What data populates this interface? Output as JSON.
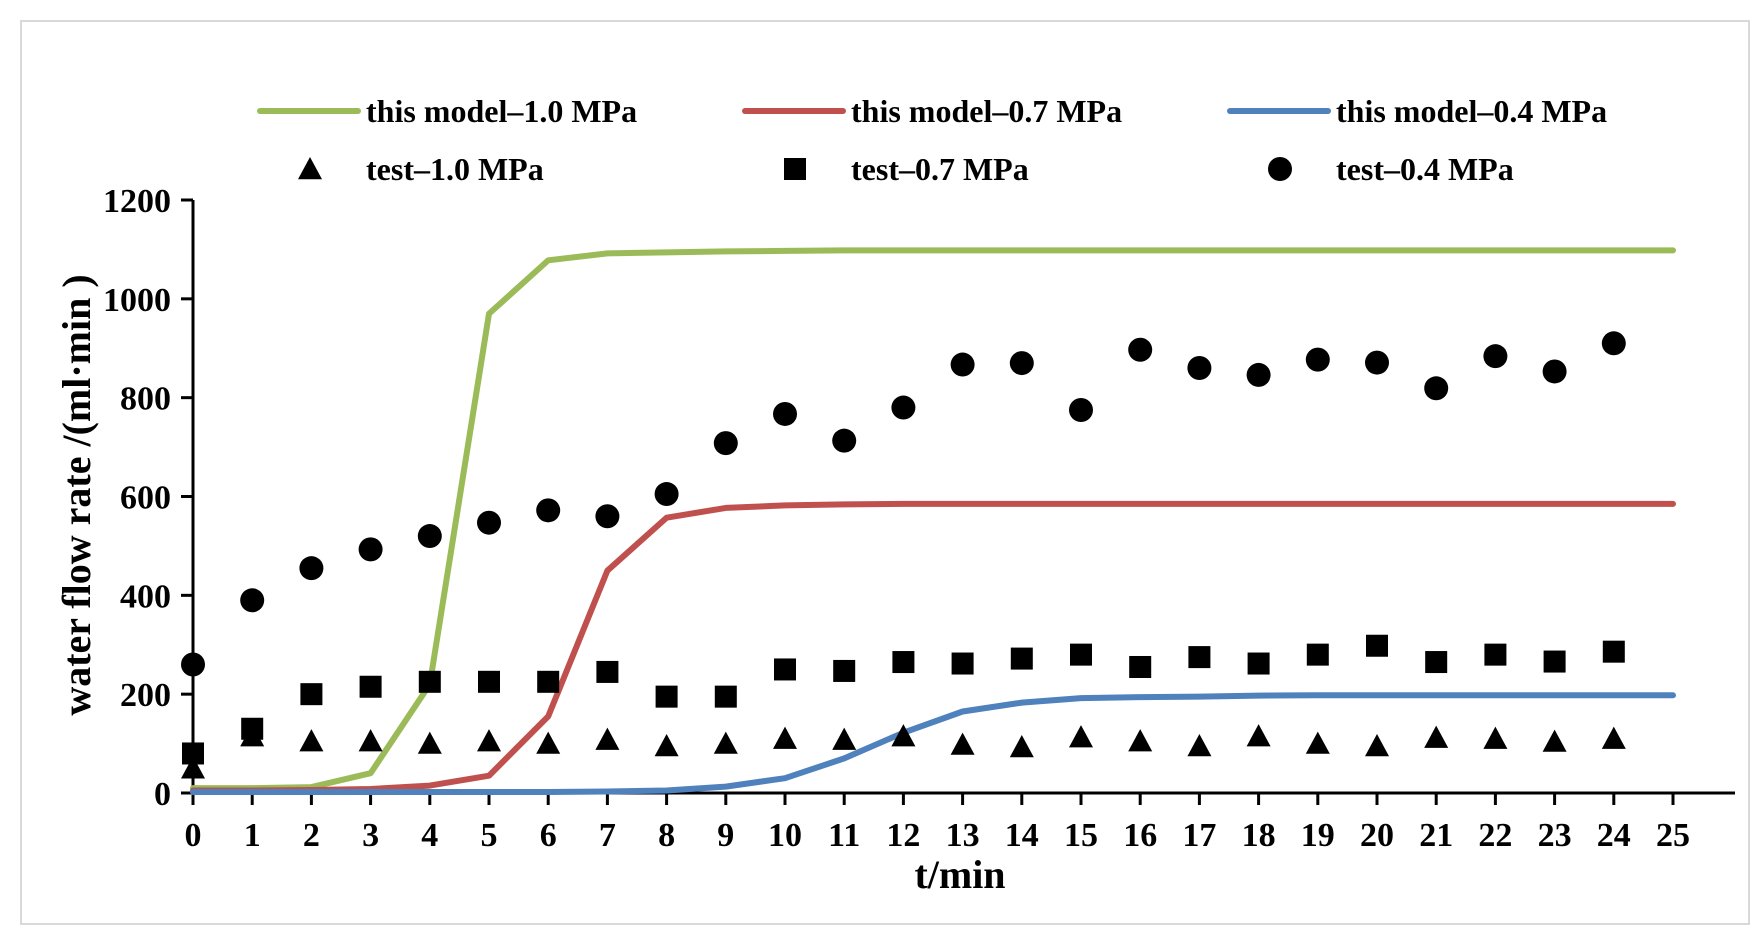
{
  "chart_data": {
    "type": "line",
    "title": "",
    "xlabel": "t/min",
    "ylabel": "water flow rate /(ml·min )",
    "xlim": [
      0,
      25
    ],
    "ylim": [
      0,
      1200
    ],
    "x_ticks": [
      "0",
      "1",
      "2",
      "3",
      "4",
      "5",
      "6",
      "7",
      "8",
      "9",
      "10",
      "11",
      "12",
      "13",
      "14",
      "15",
      "16",
      "17",
      "18",
      "19",
      "20",
      "21",
      "22",
      "23",
      "24",
      "25"
    ],
    "y_ticks": [
      "0",
      "200",
      "400",
      "600",
      "800",
      "1000",
      "1200"
    ],
    "grid": false,
    "legend_position": "top",
    "series": [
      {
        "name": "this model–1.0 MPa",
        "kind": "line",
        "color": "#9bbb59",
        "x": [
          0,
          1,
          2,
          3,
          4,
          5,
          6,
          7,
          8,
          9,
          10,
          11,
          12,
          13,
          14,
          15,
          16,
          17,
          18,
          19,
          20,
          21,
          22,
          23,
          24,
          25
        ],
        "values": [
          10,
          10,
          12,
          40,
          220,
          970,
          1078,
          1092,
          1094,
          1096,
          1097,
          1098,
          1098,
          1098,
          1098,
          1098,
          1098,
          1098,
          1098,
          1098,
          1098,
          1098,
          1098,
          1098,
          1098,
          1098
        ]
      },
      {
        "name": "this model–0.7 MPa",
        "kind": "line",
        "color": "#c0504d",
        "x": [
          0,
          1,
          2,
          3,
          4,
          5,
          6,
          7,
          8,
          9,
          10,
          11,
          12,
          13,
          14,
          15,
          16,
          17,
          18,
          19,
          20,
          21,
          22,
          23,
          24,
          25
        ],
        "values": [
          5,
          5,
          6,
          8,
          15,
          35,
          155,
          450,
          557,
          577,
          582,
          584,
          585,
          585,
          585,
          585,
          585,
          585,
          585,
          585,
          585,
          585,
          585,
          585,
          585,
          585
        ]
      },
      {
        "name": "this model–0.4 MPa",
        "kind": "line",
        "color": "#4f81bd",
        "x": [
          0,
          1,
          2,
          3,
          4,
          5,
          6,
          7,
          8,
          9,
          10,
          11,
          12,
          13,
          14,
          15,
          16,
          17,
          18,
          19,
          20,
          21,
          22,
          23,
          24,
          25
        ],
        "values": [
          2,
          2,
          2,
          2,
          2,
          2,
          2,
          3,
          5,
          13,
          30,
          70,
          122,
          165,
          183,
          192,
          194,
          195,
          197,
          198,
          198,
          198,
          198,
          198,
          198,
          198
        ]
      },
      {
        "name": "test–1.0 MPa",
        "kind": "marker",
        "marker": "triangle",
        "color": "#000000",
        "x": [
          0,
          1,
          2,
          3,
          4,
          5,
          6,
          7,
          8,
          9,
          10,
          11,
          12,
          13,
          14,
          15,
          16,
          17,
          18,
          19,
          20,
          21,
          22,
          23,
          24
        ],
        "values": [
          50,
          115,
          105,
          105,
          100,
          105,
          100,
          108,
          95,
          100,
          110,
          108,
          115,
          98,
          93,
          113,
          105,
          95,
          115,
          100,
          95,
          112,
          110,
          104,
          110
        ]
      },
      {
        "name": "test–0.7 MPa",
        "kind": "marker",
        "marker": "square",
        "color": "#000000",
        "x": [
          0,
          1,
          2,
          3,
          4,
          5,
          6,
          7,
          8,
          9,
          10,
          11,
          12,
          13,
          14,
          15,
          16,
          17,
          18,
          19,
          20,
          21,
          22,
          23,
          24
        ],
        "values": [
          80,
          130,
          200,
          215,
          225,
          225,
          225,
          245,
          195,
          195,
          250,
          247,
          265,
          262,
          272,
          280,
          255,
          275,
          262,
          280,
          298,
          265,
          280,
          266,
          286
        ]
      },
      {
        "name": "test–0.4 MPa",
        "kind": "marker",
        "marker": "circle",
        "color": "#000000",
        "x": [
          0,
          1,
          2,
          3,
          4,
          5,
          6,
          7,
          8,
          9,
          10,
          11,
          12,
          13,
          14,
          15,
          16,
          17,
          18,
          19,
          20,
          21,
          22,
          23,
          24
        ],
        "values": [
          260,
          390,
          455,
          493,
          520,
          547,
          572,
          560,
          605,
          708,
          767,
          713,
          780,
          867,
          870,
          775,
          897,
          860,
          846,
          877,
          871,
          819,
          884,
          853,
          910
        ]
      }
    ],
    "legend": [
      {
        "label": "this model–1.0 MPa",
        "series": 0
      },
      {
        "label": "this model–0.7 MPa",
        "series": 1
      },
      {
        "label": "this model–0.4 MPa",
        "series": 2
      },
      {
        "label": "test–1.0 MPa",
        "series": 3
      },
      {
        "label": "test–0.7 MPa",
        "series": 4
      },
      {
        "label": "test–0.4 MPa",
        "series": 5
      }
    ]
  }
}
